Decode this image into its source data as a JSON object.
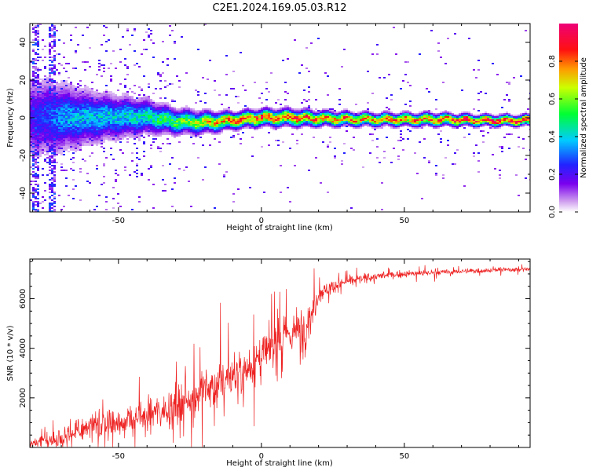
{
  "title": "C2E1.2024.169.05.03.R12",
  "chart_data": [
    {
      "type": "heatmap",
      "xlabel": "Height of straight line (km)",
      "ylabel": "Frequency (Hz)",
      "xlim": [
        -81,
        94
      ],
      "ylim": [
        -50,
        50
      ],
      "xticks": [
        -50,
        0,
        50
      ],
      "yticks": [
        -40,
        -20,
        0,
        20,
        40
      ],
      "colorbar": {
        "label": "Normalized spectral amplitude",
        "range": [
          0,
          1
        ],
        "ticks": [
          0.0,
          0.2,
          0.4,
          0.6,
          0.8
        ],
        "tick_labels": [
          "0.0",
          "0.2",
          "0.4",
          "0.6",
          "0.8"
        ]
      },
      "frequency_band": {
        "x": [
          -81,
          -70,
          -60,
          -50,
          -40,
          -30,
          -20,
          -10,
          0,
          10,
          20,
          40,
          60,
          80,
          94
        ],
        "center_hz": [
          0,
          0,
          0,
          0.5,
          0.5,
          -2,
          -2.5,
          -1.5,
          0,
          0,
          -0.5,
          -1,
          -1,
          -1.5,
          -1.5
        ],
        "width_hz": [
          20,
          16,
          12,
          10,
          8,
          6,
          5,
          4,
          4,
          4,
          3.5,
          3,
          3,
          2.5,
          2.5
        ],
        "peak_amplitude": [
          0.2,
          0.35,
          0.4,
          0.4,
          0.45,
          0.55,
          0.7,
          0.8,
          0.85,
          0.85,
          0.8,
          0.8,
          0.85,
          0.95,
          0.95
        ]
      },
      "grid": false
    },
    {
      "type": "line",
      "xlabel": "Height of straight line (km)",
      "ylabel": "SNR (10 * v/v)",
      "xlim": [
        -81,
        94
      ],
      "ylim": [
        0,
        7600
      ],
      "xticks": [
        -50,
        0,
        50
      ],
      "yticks": [
        2000,
        4000,
        6000
      ],
      "line_color": "#ee2222",
      "series_envelope": {
        "x": [
          -81,
          -75,
          -70,
          -65,
          -60,
          -55,
          -50,
          -45,
          -40,
          -35,
          -30,
          -25,
          -20,
          -15,
          -10,
          -5,
          0,
          5,
          10,
          15,
          18,
          20,
          25,
          30,
          40,
          50,
          60,
          70,
          80,
          94
        ],
        "mean": [
          150,
          250,
          400,
          600,
          800,
          900,
          1000,
          1100,
          1300,
          1500,
          1700,
          2000,
          2300,
          2600,
          2900,
          3200,
          3600,
          4200,
          4600,
          4800,
          5500,
          6200,
          6500,
          6700,
          6900,
          7000,
          7050,
          7100,
          7150,
          7200
        ],
        "spread": [
          250,
          400,
          600,
          800,
          900,
          900,
          900,
          900,
          1000,
          1100,
          1200,
          1300,
          1400,
          1500,
          1500,
          1500,
          1500,
          1300,
          1400,
          1500,
          1200,
          600,
          400,
          300,
          250,
          200,
          200,
          150,
          150,
          150
        ]
      },
      "grid": false
    }
  ]
}
